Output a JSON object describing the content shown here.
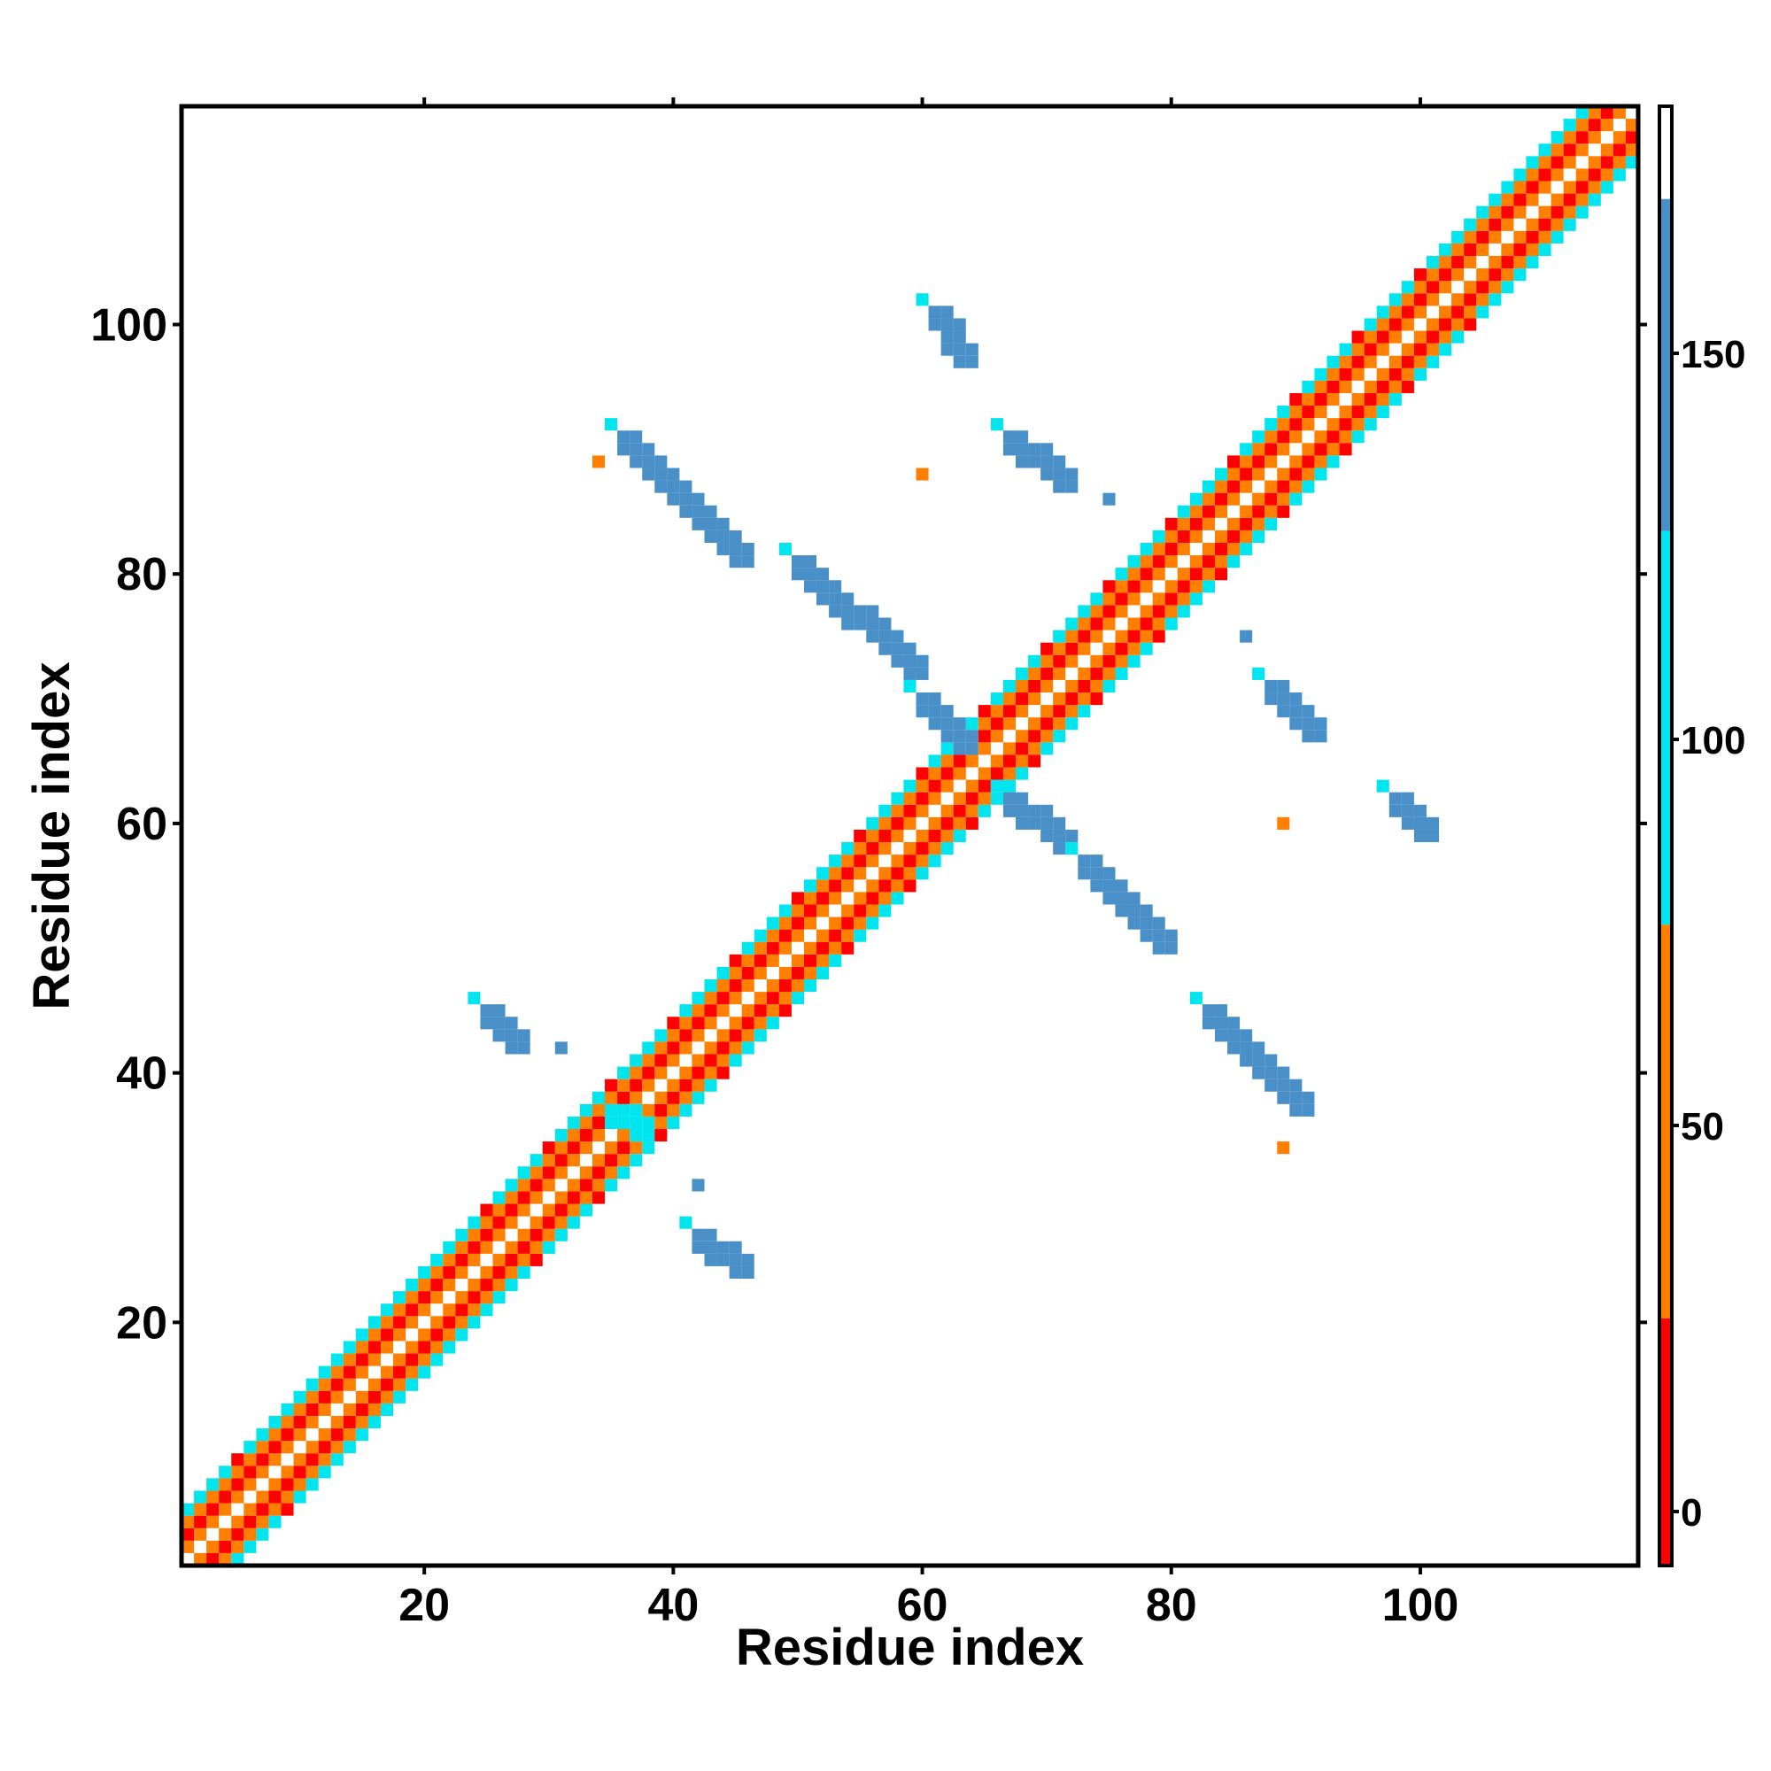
{
  "chart_data": {
    "type": "heatmap",
    "title": "",
    "xlabel": "Residue index",
    "ylabel": "Residue index",
    "xlim": [
      0.5,
      117.5
    ],
    "ylim": [
      0.5,
      117.5
    ],
    "xticks": [
      20,
      40,
      60,
      80,
      100
    ],
    "yticks": [
      20,
      40,
      60,
      80,
      100
    ],
    "grid": false,
    "colorbar": {
      "range": [
        -7,
        182
      ],
      "ticks": [
        0,
        50,
        100,
        150
      ],
      "bands": [
        {
          "from": -7,
          "to": 25,
          "color": "#ff0000"
        },
        {
          "from": 25,
          "to": 76,
          "color": "#ff7f00"
        },
        {
          "from": 76,
          "to": 127,
          "color": "#00e5ee"
        },
        {
          "from": 127,
          "to": 170,
          "color": "#4a90c8"
        },
        {
          "from": 170,
          "to": 182,
          "color": "#ffffff"
        }
      ]
    },
    "colors": {
      "red": "#ff0000",
      "orange": "#ff7f00",
      "cyan": "#00e5ee",
      "blue": "#4a90c8"
    },
    "diagonal_band": {
      "description_values": "cells at offsets |i-j| from 1 to 4 along the main diagonal, 1..117",
      "offset_pattern": {
        "1": "orange",
        "2": "red",
        "3": "orange",
        "4": "cyan"
      },
      "helix_segments": [
        [
          10,
          22
        ],
        [
          104,
          113
        ]
      ]
    },
    "contact_segments": [
      {
        "x": [
          35,
          46
        ],
        "y": [
          92,
          81
        ],
        "color": "blue"
      },
      {
        "x": [
          49,
          60
        ],
        "y": [
          82,
          72
        ],
        "color": "blue"
      },
      {
        "x": [
          59,
          64
        ],
        "y": [
          71,
          66
        ],
        "color": "blue"
      },
      {
        "x": [
          66,
          72
        ],
        "y": [
          63,
          58
        ],
        "color": "blue"
      },
      {
        "x": [
          72,
          80
        ],
        "y": [
          58,
          50
        ],
        "color": "blue"
      },
      {
        "x": [
          82,
          91
        ],
        "y": [
          46,
          37
        ],
        "color": "blue"
      },
      {
        "x": [
          24,
          28
        ],
        "y": [
          46,
          42
        ],
        "color": "blue"
      },
      {
        "x": [
          41,
          46
        ],
        "y": [
          28,
          24
        ],
        "color": "blue"
      },
      {
        "x": [
          34,
          38
        ],
        "y": [
          38,
          35
        ],
        "color": "cyan"
      },
      {
        "x": [
          60,
          64
        ],
        "y": [
          102,
          97
        ],
        "color": "blue"
      },
      {
        "x": [
          66,
          72
        ],
        "y": [
          92,
          87
        ],
        "color": "blue"
      },
      {
        "x": [
          87,
          92
        ],
        "y": [
          72,
          67
        ],
        "color": "blue"
      },
      {
        "x": [
          97,
          101
        ],
        "y": [
          63,
          59
        ],
        "color": "blue"
      }
    ],
    "isolated_points": [
      {
        "x": 60,
        "y": 88,
        "color": "orange"
      },
      {
        "x": 89,
        "y": 60,
        "color": "orange"
      },
      {
        "x": 31,
        "y": 42,
        "color": "blue"
      },
      {
        "x": 42,
        "y": 31,
        "color": "blue"
      },
      {
        "x": 75,
        "y": 86,
        "color": "blue"
      },
      {
        "x": 86,
        "y": 75,
        "color": "blue"
      },
      {
        "x": 34,
        "y": 89,
        "color": "orange"
      },
      {
        "x": 89,
        "y": 34,
        "color": "orange"
      }
    ]
  }
}
